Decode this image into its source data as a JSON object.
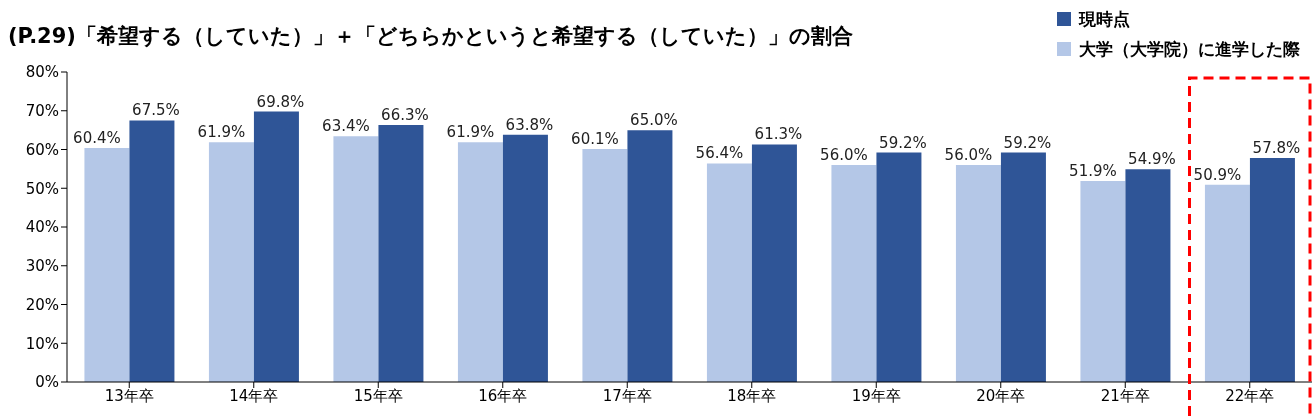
{
  "chart_data": {
    "type": "bar",
    "title": "(P.29)「希望する（していた）」＋「どちらかというと希望する（していた）」の割合",
    "categories": [
      "13年卒",
      "14年卒",
      "15年卒",
      "16年卒",
      "17年卒",
      "18年卒",
      "19年卒",
      "20年卒",
      "21年卒",
      "22年卒"
    ],
    "series": [
      {
        "name": "大学（大学院）に進学した際",
        "color": "#b4c7e7",
        "values": [
          60.4,
          61.9,
          63.4,
          61.9,
          60.1,
          56.4,
          56.0,
          56.0,
          51.9,
          50.9
        ],
        "value_labels": [
          "60.4%",
          "61.9%",
          "63.4%",
          "61.9%",
          "60.1%",
          "56.4%",
          "56.0%",
          "56.0%",
          "51.9%",
          "50.9%"
        ]
      },
      {
        "name": "現時点",
        "color": "#2f5597",
        "values": [
          67.5,
          69.8,
          66.3,
          63.8,
          65.0,
          61.3,
          59.2,
          59.2,
          54.9,
          57.8
        ],
        "value_labels": [
          "67.5%",
          "69.8%",
          "66.3%",
          "63.8%",
          "65.0%",
          "61.3%",
          "59.2%",
          "59.2%",
          "54.9%",
          "57.8%"
        ]
      }
    ],
    "ylim": [
      0,
      80
    ],
    "yticks": [
      {
        "value": 0,
        "label": "0%"
      },
      {
        "value": 10,
        "label": "10%"
      },
      {
        "value": 20,
        "label": "20%"
      },
      {
        "value": 30,
        "label": "30%"
      },
      {
        "value": 40,
        "label": "40%"
      },
      {
        "value": 50,
        "label": "50%"
      },
      {
        "value": 60,
        "label": "60%"
      },
      {
        "value": 70,
        "label": "70%"
      },
      {
        "value": 80,
        "label": "80%"
      }
    ],
    "grid": false,
    "legend": "top right"
  }
}
